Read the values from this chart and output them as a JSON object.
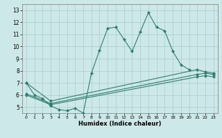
{
  "title": "",
  "xlabel": "Humidex (Indice chaleur)",
  "ylabel": "",
  "background_color": "#cde8e8",
  "grid_color": "#aacccc",
  "line_color": "#2e7d6e",
  "xlim": [
    -0.5,
    23.5
  ],
  "ylim": [
    4.5,
    13.5
  ],
  "yticks": [
    5,
    6,
    7,
    8,
    9,
    10,
    11,
    12,
    13
  ],
  "xticks": [
    0,
    1,
    2,
    3,
    4,
    5,
    6,
    7,
    8,
    9,
    10,
    11,
    12,
    13,
    14,
    15,
    16,
    17,
    18,
    19,
    20,
    21,
    22,
    23
  ],
  "series": [
    {
      "x": [
        0,
        1,
        2,
        3,
        4,
        5,
        6,
        7,
        8,
        9,
        10,
        11,
        12,
        13,
        14,
        15,
        16,
        17,
        18,
        19,
        20
      ],
      "y": [
        7.0,
        6.0,
        5.7,
        5.1,
        4.8,
        4.7,
        4.9,
        4.5,
        7.8,
        9.7,
        11.5,
        11.6,
        10.6,
        9.6,
        11.2,
        12.8,
        11.6,
        11.3,
        9.6,
        8.5,
        8.1
      ]
    },
    {
      "x": [
        0,
        3,
        21,
        22,
        23
      ],
      "y": [
        7.0,
        5.5,
        8.1,
        7.9,
        7.8
      ]
    },
    {
      "x": [
        0,
        3,
        21,
        22,
        23
      ],
      "y": [
        6.1,
        5.3,
        7.7,
        7.8,
        7.7
      ]
    },
    {
      "x": [
        0,
        3,
        21,
        22,
        23
      ],
      "y": [
        6.0,
        5.2,
        7.5,
        7.6,
        7.5
      ]
    }
  ]
}
